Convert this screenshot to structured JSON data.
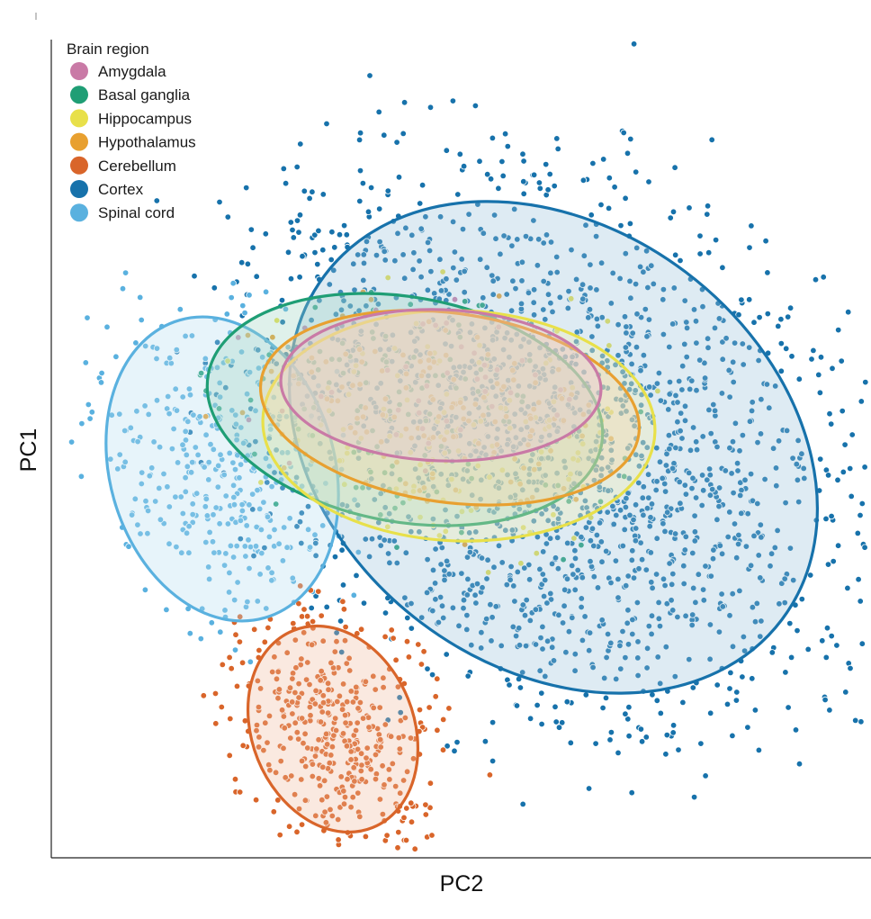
{
  "chart_data": {
    "type": "scatter",
    "xlabel": "PC2",
    "ylabel": "PC1",
    "legend": {
      "title": "Brain region",
      "placement": "top-left"
    },
    "grid": false,
    "confidence_ellipses": true,
    "series": [
      {
        "name": "Amygdala",
        "color": "#c97aa6",
        "ellipse": {
          "cx": 490,
          "cy": 428,
          "rx": 178,
          "ry": 84,
          "angle": 2
        }
      },
      {
        "name": "Basal ganglia",
        "color": "#1f9e75",
        "ellipse": {
          "cx": 450,
          "cy": 455,
          "rx": 222,
          "ry": 125,
          "angle": 10
        }
      },
      {
        "name": "Hippocampus",
        "color": "#e8e04a",
        "ellipse": {
          "cx": 510,
          "cy": 473,
          "rx": 218,
          "ry": 128,
          "angle": 2
        }
      },
      {
        "name": "Hypothalamus",
        "color": "#e8a030",
        "ellipse": {
          "cx": 500,
          "cy": 453,
          "rx": 212,
          "ry": 105,
          "angle": 8
        }
      },
      {
        "name": "Cerebellum",
        "color": "#d9652a",
        "ellipse": {
          "cx": 370,
          "cy": 810,
          "rx": 90,
          "ry": 118,
          "angle": -22
        }
      },
      {
        "name": "Cortex",
        "color": "#1772ab",
        "ellipse": {
          "cx": 615,
          "cy": 497,
          "rx": 318,
          "ry": 244,
          "angle": 37
        }
      },
      {
        "name": "Spinal cord",
        "color": "#5ab1df",
        "ellipse": {
          "cx": 247,
          "cy": 521,
          "rx": 125,
          "ry": 172,
          "angle": -16
        }
      }
    ]
  }
}
